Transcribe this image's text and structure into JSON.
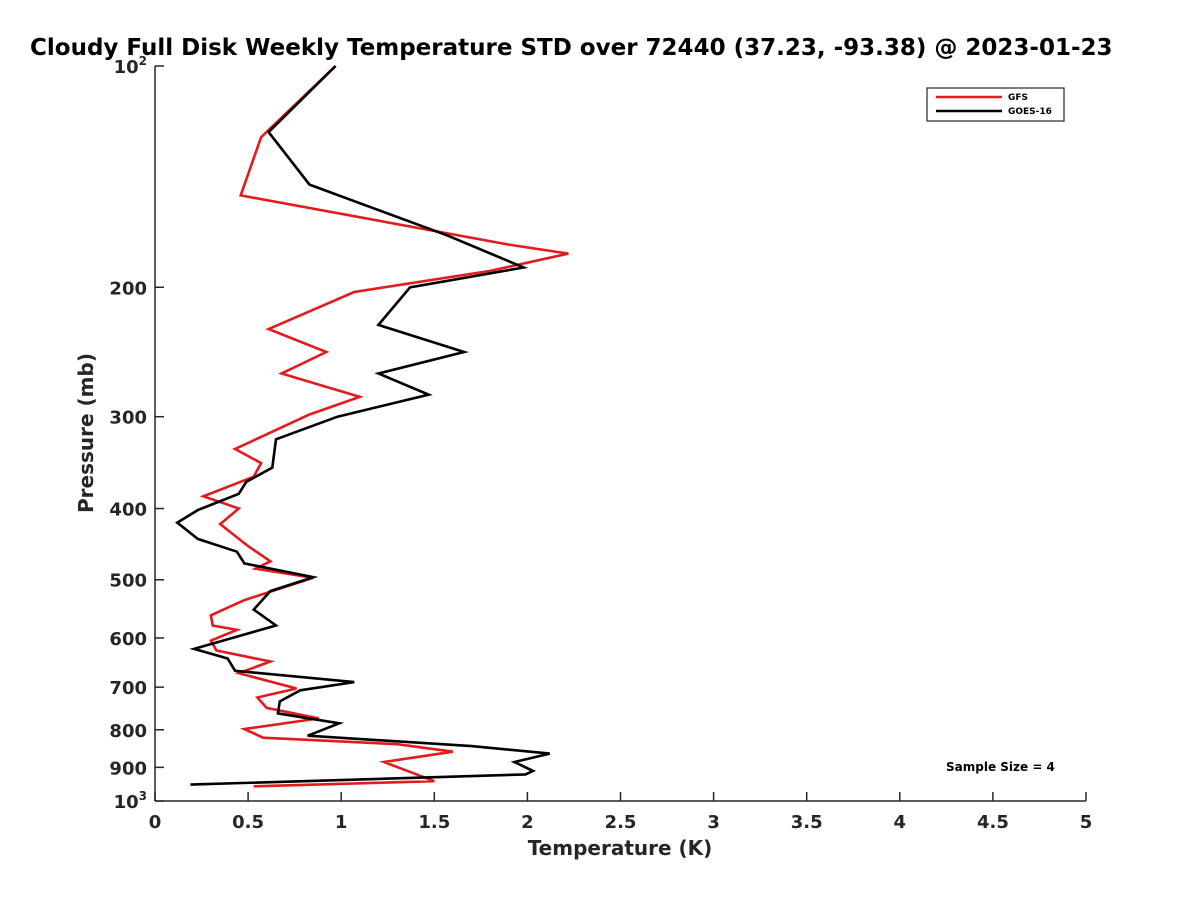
{
  "chart_data": {
    "type": "line",
    "title": "Cloudy Full Disk Weekly Temperature STD over 72440 (37.23, -93.38) @ 2023-01-23",
    "xlabel": "Temperature (K)",
    "ylabel": "Pressure (mb)",
    "xlim": [
      0,
      5
    ],
    "ylim": [
      100,
      1000
    ],
    "y_scale": "log",
    "y_reversed": true,
    "grid": false,
    "legend_position": "top-right",
    "x_ticks": [
      "0",
      "0.5",
      "1",
      "1.5",
      "2",
      "2.5",
      "3",
      "3.5",
      "4",
      "4.5",
      "5"
    ],
    "x_tick_values": [
      0,
      0.5,
      1,
      1.5,
      2,
      2.5,
      3,
      3.5,
      4,
      4.5,
      5
    ],
    "y_ticks": [
      {
        "value": 100,
        "label": "10",
        "sup": "2"
      },
      {
        "value": 200,
        "label": "200",
        "sup": ""
      },
      {
        "value": 300,
        "label": "300",
        "sup": ""
      },
      {
        "value": 400,
        "label": "400",
        "sup": ""
      },
      {
        "value": 500,
        "label": "500",
        "sup": ""
      },
      {
        "value": 600,
        "label": "600",
        "sup": ""
      },
      {
        "value": 700,
        "label": "700",
        "sup": ""
      },
      {
        "value": 800,
        "label": "800",
        "sup": ""
      },
      {
        "value": 900,
        "label": "900",
        "sup": ""
      },
      {
        "value": 1000,
        "label": "10",
        "sup": "3"
      }
    ],
    "annotation": "Sample Size = 4",
    "series": [
      {
        "name": "GFS",
        "color": "#e41a1c",
        "points": [
          [
            0.97,
            100
          ],
          [
            0.57,
            125
          ],
          [
            0.46,
            150
          ],
          [
            1.9,
            175
          ],
          [
            2.22,
            180
          ],
          [
            1.8,
            190
          ],
          [
            1.07,
            203
          ],
          [
            0.61,
            228
          ],
          [
            0.92,
            245
          ],
          [
            0.68,
            262
          ],
          [
            1.1,
            282
          ],
          [
            0.83,
            298
          ],
          [
            0.43,
            332
          ],
          [
            0.57,
            347
          ],
          [
            0.53,
            362
          ],
          [
            0.26,
            385
          ],
          [
            0.45,
            400
          ],
          [
            0.35,
            420
          ],
          [
            0.5,
            450
          ],
          [
            0.62,
            472
          ],
          [
            0.54,
            483
          ],
          [
            0.85,
            497
          ],
          [
            0.48,
            533
          ],
          [
            0.3,
            559
          ],
          [
            0.31,
            577
          ],
          [
            0.44,
            585
          ],
          [
            0.3,
            605
          ],
          [
            0.33,
            624
          ],
          [
            0.62,
            646
          ],
          [
            0.45,
            670
          ],
          [
            0.76,
            703
          ],
          [
            0.55,
            723
          ],
          [
            0.6,
            747
          ],
          [
            0.88,
            772
          ],
          [
            0.48,
            798
          ],
          [
            0.58,
            820
          ],
          [
            1.3,
            837
          ],
          [
            1.6,
            857
          ],
          [
            1.23,
            885
          ],
          [
            1.5,
            940
          ],
          [
            0.53,
            955
          ]
        ]
      },
      {
        "name": "GOES-16",
        "color": "#000000",
        "points": [
          [
            0.97,
            100
          ],
          [
            0.61,
            123
          ],
          [
            0.83,
            145
          ],
          [
            1.57,
            170
          ],
          [
            1.98,
            188
          ],
          [
            1.37,
            200
          ],
          [
            1.2,
            225
          ],
          [
            1.66,
            245
          ],
          [
            1.2,
            262
          ],
          [
            1.47,
            280
          ],
          [
            0.98,
            300
          ],
          [
            0.65,
            322
          ],
          [
            0.63,
            352
          ],
          [
            0.49,
            368
          ],
          [
            0.45,
            382
          ],
          [
            0.23,
            402
          ],
          [
            0.12,
            418
          ],
          [
            0.23,
            440
          ],
          [
            0.44,
            458
          ],
          [
            0.48,
            475
          ],
          [
            0.85,
            496
          ],
          [
            0.62,
            518
          ],
          [
            0.53,
            549
          ],
          [
            0.65,
            577
          ],
          [
            0.21,
            621
          ],
          [
            0.39,
            640
          ],
          [
            0.43,
            665
          ],
          [
            1.07,
            689
          ],
          [
            0.78,
            707
          ],
          [
            0.67,
            732
          ],
          [
            0.66,
            760
          ],
          [
            0.99,
            784
          ],
          [
            0.82,
            815
          ],
          [
            1.7,
            842
          ],
          [
            2.12,
            862
          ],
          [
            1.93,
            885
          ],
          [
            2.03,
            910
          ],
          [
            1.99,
            920
          ],
          [
            0.19,
            950
          ]
        ]
      }
    ]
  }
}
